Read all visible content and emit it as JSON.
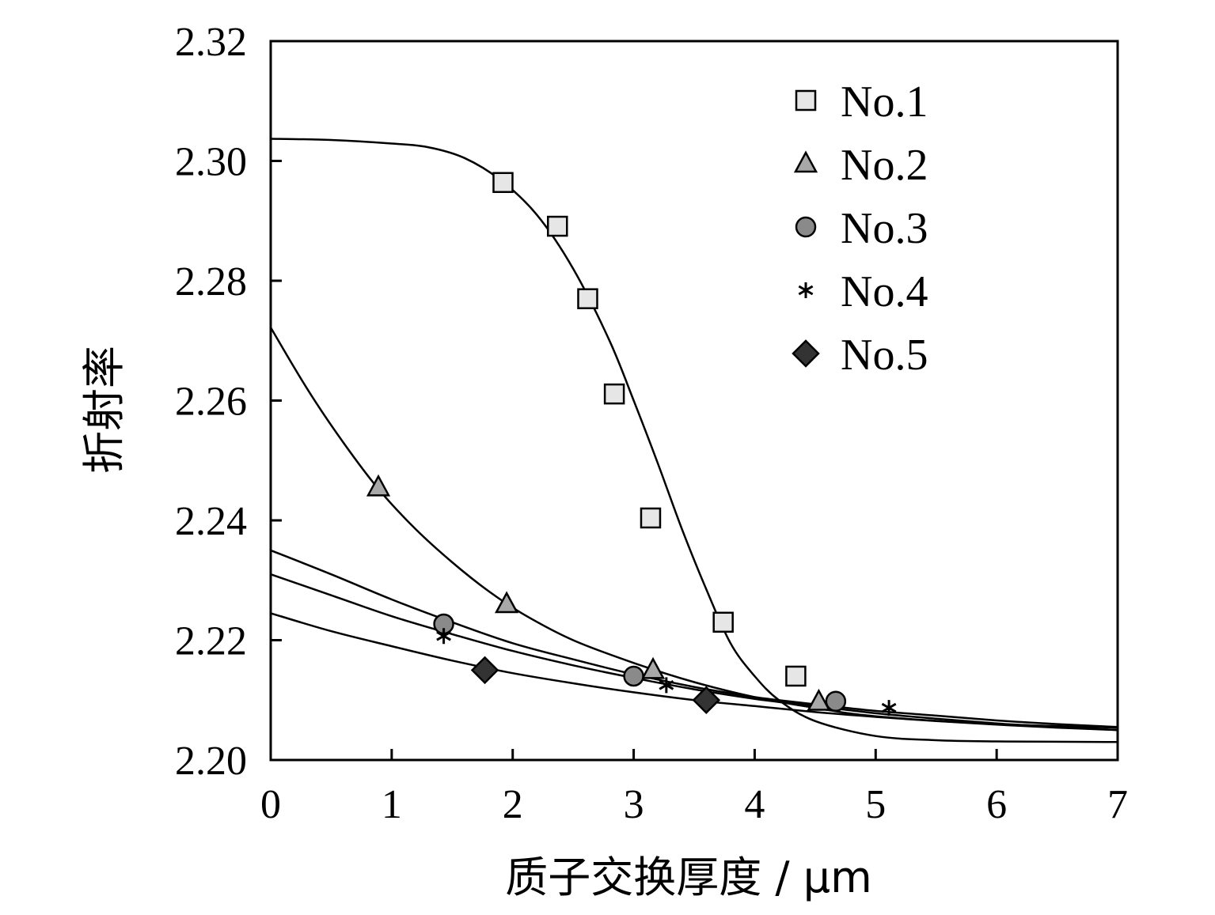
{
  "chart_data": {
    "type": "scatter",
    "xlabel": "质子交换厚度 / μm",
    "ylabel": "折射率",
    "xlim": [
      0,
      7
    ],
    "ylim": [
      2.2,
      2.32
    ],
    "xticks": [
      "0",
      "1",
      "2",
      "3",
      "4",
      "5",
      "6",
      "7"
    ],
    "yticks": [
      "2.20",
      "2.22",
      "2.24",
      "2.26",
      "2.28",
      "2.30",
      "2.32"
    ],
    "grid": false,
    "legend_position": "top-right",
    "series": [
      {
        "name": "No.1",
        "marker": "square",
        "color": "#e6e6e6",
        "points": [
          [
            1.92,
            2.2964
          ],
          [
            2.37,
            2.2891
          ],
          [
            2.62,
            2.277
          ],
          [
            2.84,
            2.2611
          ],
          [
            3.14,
            2.2404
          ],
          [
            3.74,
            2.223
          ],
          [
            4.34,
            2.214
          ]
        ],
        "fit": [
          [
            0,
            2.3037
          ],
          [
            0.5,
            2.3035
          ],
          [
            1.0,
            2.3029
          ],
          [
            1.3,
            2.3023
          ],
          [
            1.6,
            2.3005
          ],
          [
            1.9,
            2.2968
          ],
          [
            2.2,
            2.291
          ],
          [
            2.5,
            2.282
          ],
          [
            2.8,
            2.27
          ],
          [
            3.0,
            2.26
          ],
          [
            3.2,
            2.2495
          ],
          [
            3.4,
            2.2385
          ],
          [
            3.6,
            2.2285
          ],
          [
            3.8,
            2.2195
          ],
          [
            4.0,
            2.214
          ],
          [
            4.2,
            2.21
          ],
          [
            4.5,
            2.2065
          ],
          [
            5.0,
            2.204
          ],
          [
            5.5,
            2.2033
          ],
          [
            6.0,
            2.2031
          ],
          [
            7.0,
            2.203
          ]
        ]
      },
      {
        "name": "No.2",
        "marker": "triangle",
        "color": "#a8a8a8",
        "points": [
          [
            0.89,
            2.2455
          ],
          [
            1.95,
            2.226
          ],
          [
            3.16,
            2.215
          ],
          [
            4.53,
            2.2097
          ]
        ],
        "fit": [
          [
            0,
            2.2722
          ],
          [
            0.3,
            2.262
          ],
          [
            0.6,
            2.253
          ],
          [
            0.9,
            2.245
          ],
          [
            1.2,
            2.2385
          ],
          [
            1.5,
            2.233
          ],
          [
            1.8,
            2.2282
          ],
          [
            2.1,
            2.2242
          ],
          [
            2.5,
            2.22
          ],
          [
            3.0,
            2.2162
          ],
          [
            3.5,
            2.213
          ],
          [
            4.0,
            2.2105
          ],
          [
            4.5,
            2.2087
          ],
          [
            5.0,
            2.2073
          ],
          [
            6.0,
            2.206
          ],
          [
            7.0,
            2.2054
          ]
        ]
      },
      {
        "name": "No.3",
        "marker": "circle",
        "color": "#8a8a8a",
        "points": [
          [
            1.43,
            2.2227
          ],
          [
            3.0,
            2.214
          ],
          [
            4.67,
            2.2098
          ]
        ],
        "fit": [
          [
            0,
            2.235
          ],
          [
            0.5,
            2.231
          ],
          [
            1.0,
            2.2268
          ],
          [
            1.5,
            2.223
          ],
          [
            2.0,
            2.2195
          ],
          [
            2.5,
            2.2168
          ],
          [
            3.0,
            2.2143
          ],
          [
            3.5,
            2.2122
          ],
          [
            4.0,
            2.2105
          ],
          [
            4.5,
            2.2093
          ],
          [
            5.0,
            2.2082
          ],
          [
            5.5,
            2.2074
          ],
          [
            6.0,
            2.2066
          ],
          [
            6.5,
            2.206
          ],
          [
            7.0,
            2.2055
          ]
        ]
      },
      {
        "name": "No.4",
        "marker": "asterisk",
        "color": "#000000",
        "points": [
          [
            1.43,
            2.2207
          ],
          [
            3.27,
            2.2125
          ],
          [
            5.11,
            2.2087
          ]
        ],
        "fit": [
          [
            0,
            2.231
          ],
          [
            0.5,
            2.2275
          ],
          [
            1.0,
            2.224
          ],
          [
            1.5,
            2.221
          ],
          [
            2.0,
            2.2182
          ],
          [
            2.5,
            2.2158
          ],
          [
            3.0,
            2.2137
          ],
          [
            3.5,
            2.2118
          ],
          [
            4.0,
            2.2102
          ],
          [
            4.5,
            2.209
          ],
          [
            5.0,
            2.2078
          ],
          [
            5.5,
            2.2069
          ],
          [
            6.0,
            2.2061
          ],
          [
            6.5,
            2.2055
          ],
          [
            7.0,
            2.205
          ]
        ]
      },
      {
        "name": "No.5",
        "marker": "diamond",
        "color": "#333333",
        "points": [
          [
            1.77,
            2.215
          ],
          [
            3.6,
            2.21
          ]
        ],
        "fit": [
          [
            0,
            2.2245
          ],
          [
            0.5,
            2.2215
          ],
          [
            1.0,
            2.219
          ],
          [
            1.5,
            2.2166
          ],
          [
            2.0,
            2.2145
          ],
          [
            2.5,
            2.2128
          ],
          [
            3.0,
            2.2113
          ],
          [
            3.5,
            2.21
          ],
          [
            4.0,
            2.209
          ],
          [
            4.5,
            2.208
          ],
          [
            5.0,
            2.2072
          ],
          [
            5.5,
            2.2065
          ],
          [
            6.0,
            2.2059
          ],
          [
            6.5,
            2.2054
          ],
          [
            7.0,
            2.205
          ]
        ]
      }
    ]
  }
}
